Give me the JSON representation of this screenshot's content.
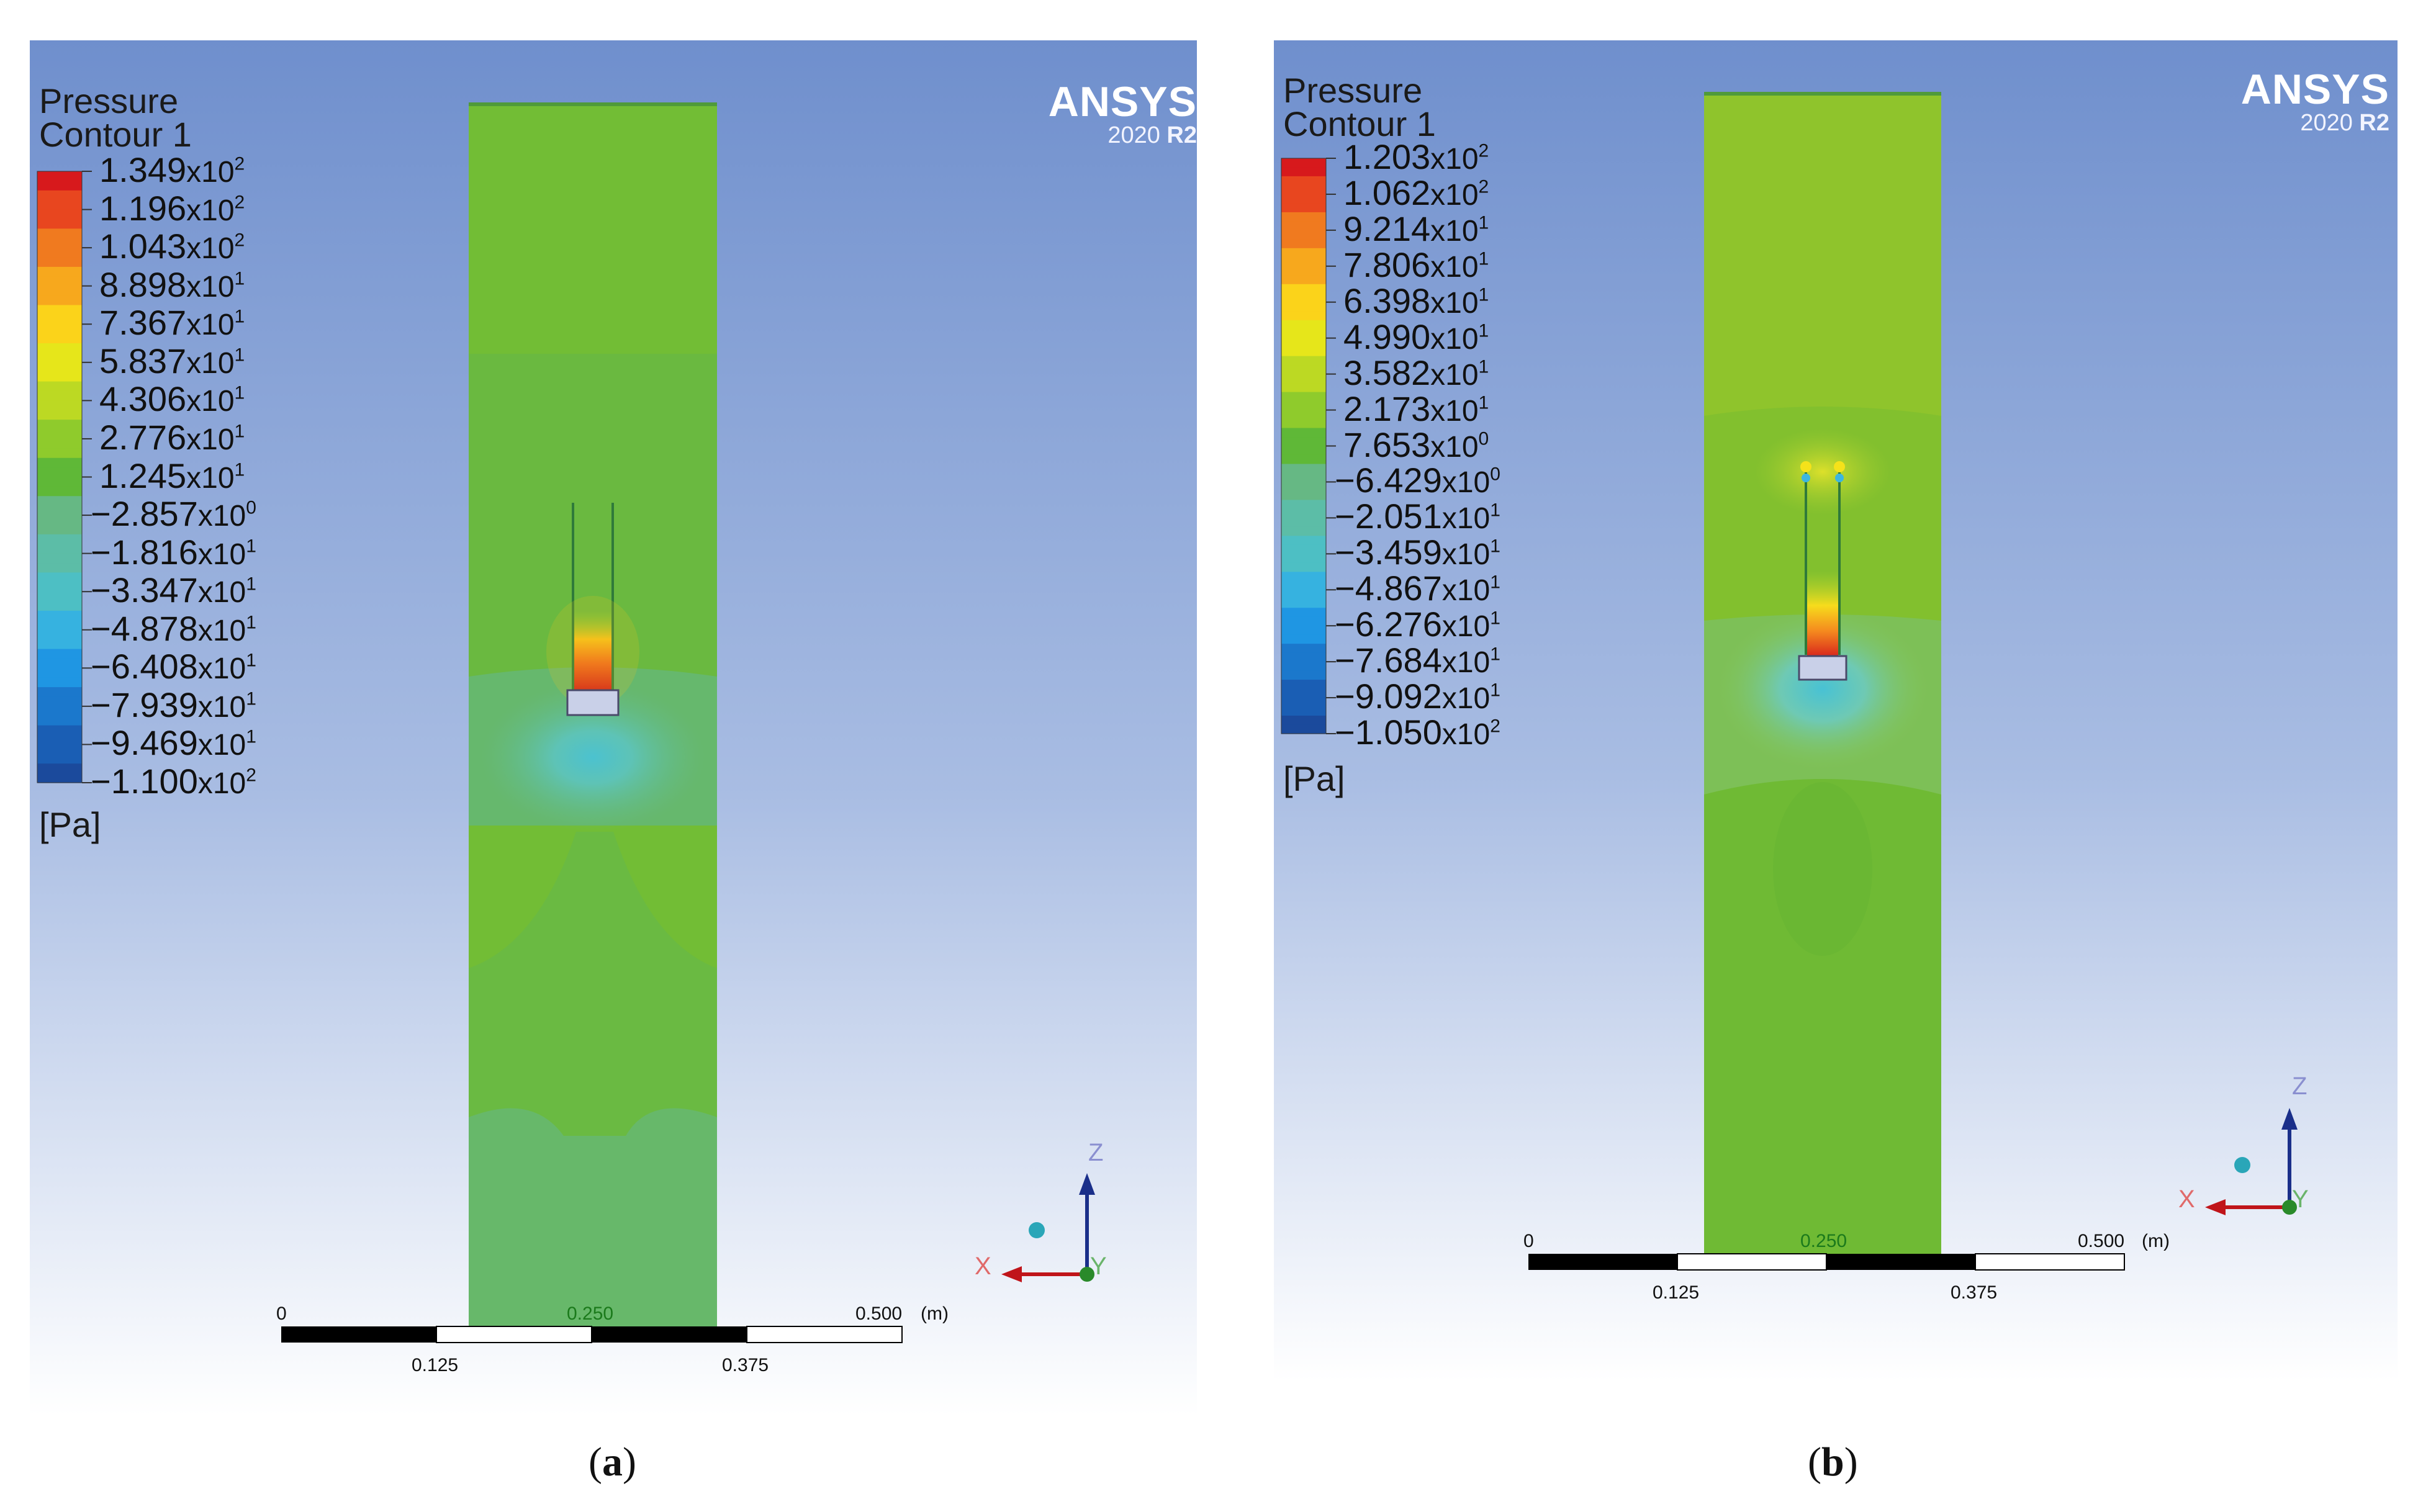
{
  "panels": [
    {
      "id": "a",
      "legend_title": [
        "Pressure",
        "Contour 1"
      ],
      "ticks": [
        {
          "m": "1.349",
          "e": "2"
        },
        {
          "m": "1.196",
          "e": "2"
        },
        {
          "m": "1.043",
          "e": "2"
        },
        {
          "m": "8.898",
          "e": "1"
        },
        {
          "m": "7.367",
          "e": "1"
        },
        {
          "m": "5.837",
          "e": "1"
        },
        {
          "m": "4.306",
          "e": "1"
        },
        {
          "m": "2.776",
          "e": "1"
        },
        {
          "m": "1.245",
          "e": "1"
        },
        {
          "m": "−2.857",
          "e": "0"
        },
        {
          "m": "−1.816",
          "e": "1"
        },
        {
          "m": "−3.347",
          "e": "1"
        },
        {
          "m": "−4.878",
          "e": "1"
        },
        {
          "m": "−6.408",
          "e": "1"
        },
        {
          "m": "−7.939",
          "e": "1"
        },
        {
          "m": "−9.469",
          "e": "1"
        },
        {
          "m": "−1.100",
          "e": "2"
        }
      ],
      "unit": "[Pa]",
      "logo": {
        "name": "ANSYS",
        "version": "2020",
        "release": "R2"
      },
      "scale_bar": {
        "labels_top": [
          "0",
          "0.250",
          "0.500"
        ],
        "unit": "(m)",
        "labels_bottom": [
          "0.125",
          "0.375"
        ]
      },
      "triad": {
        "x": "X",
        "y": "Y",
        "z": "Z"
      },
      "caption": "a"
    },
    {
      "id": "b",
      "legend_title": [
        "Pressure",
        "Contour 1"
      ],
      "ticks": [
        {
          "m": "1.203",
          "e": "2"
        },
        {
          "m": "1.062",
          "e": "2"
        },
        {
          "m": "9.214",
          "e": "1"
        },
        {
          "m": "7.806",
          "e": "1"
        },
        {
          "m": "6.398",
          "e": "1"
        },
        {
          "m": "4.990",
          "e": "1"
        },
        {
          "m": "3.582",
          "e": "1"
        },
        {
          "m": "2.173",
          "e": "1"
        },
        {
          "m": "7.653",
          "e": "0"
        },
        {
          "m": "−6.429",
          "e": "0"
        },
        {
          "m": "−2.051",
          "e": "1"
        },
        {
          "m": "−3.459",
          "e": "1"
        },
        {
          "m": "−4.867",
          "e": "1"
        },
        {
          "m": "−6.276",
          "e": "1"
        },
        {
          "m": "−7.684",
          "e": "1"
        },
        {
          "m": "−9.092",
          "e": "1"
        },
        {
          "m": "−1.050",
          "e": "2"
        }
      ],
      "unit": "[Pa]",
      "logo": {
        "name": "ANSYS",
        "version": "2020",
        "release": "R2"
      },
      "scale_bar": {
        "labels_top": [
          "0",
          "0.250",
          "0.500"
        ],
        "unit": "(m)",
        "labels_bottom": [
          "0.125",
          "0.375"
        ]
      },
      "triad": {
        "x": "X",
        "y": "Y",
        "z": "Z"
      },
      "caption": "b"
    }
  ],
  "colors": {
    "bg_top": "#6f8fcd",
    "bg_bottom": "#ffffff",
    "domain_green": "#6ebd3a",
    "domain_lower": "#67b86a",
    "colormap": [
      "#d7191c",
      "#e8461f",
      "#f07a1f",
      "#f7a81d",
      "#fbd31a",
      "#e6e61a",
      "#bcd923",
      "#8fcb2c",
      "#5fb837",
      "#66b884",
      "#5cbda7",
      "#4dbfc4",
      "#36b2e0",
      "#1f96e3",
      "#1b78cc",
      "#1a5eb4",
      "#1b4a9c"
    ]
  }
}
